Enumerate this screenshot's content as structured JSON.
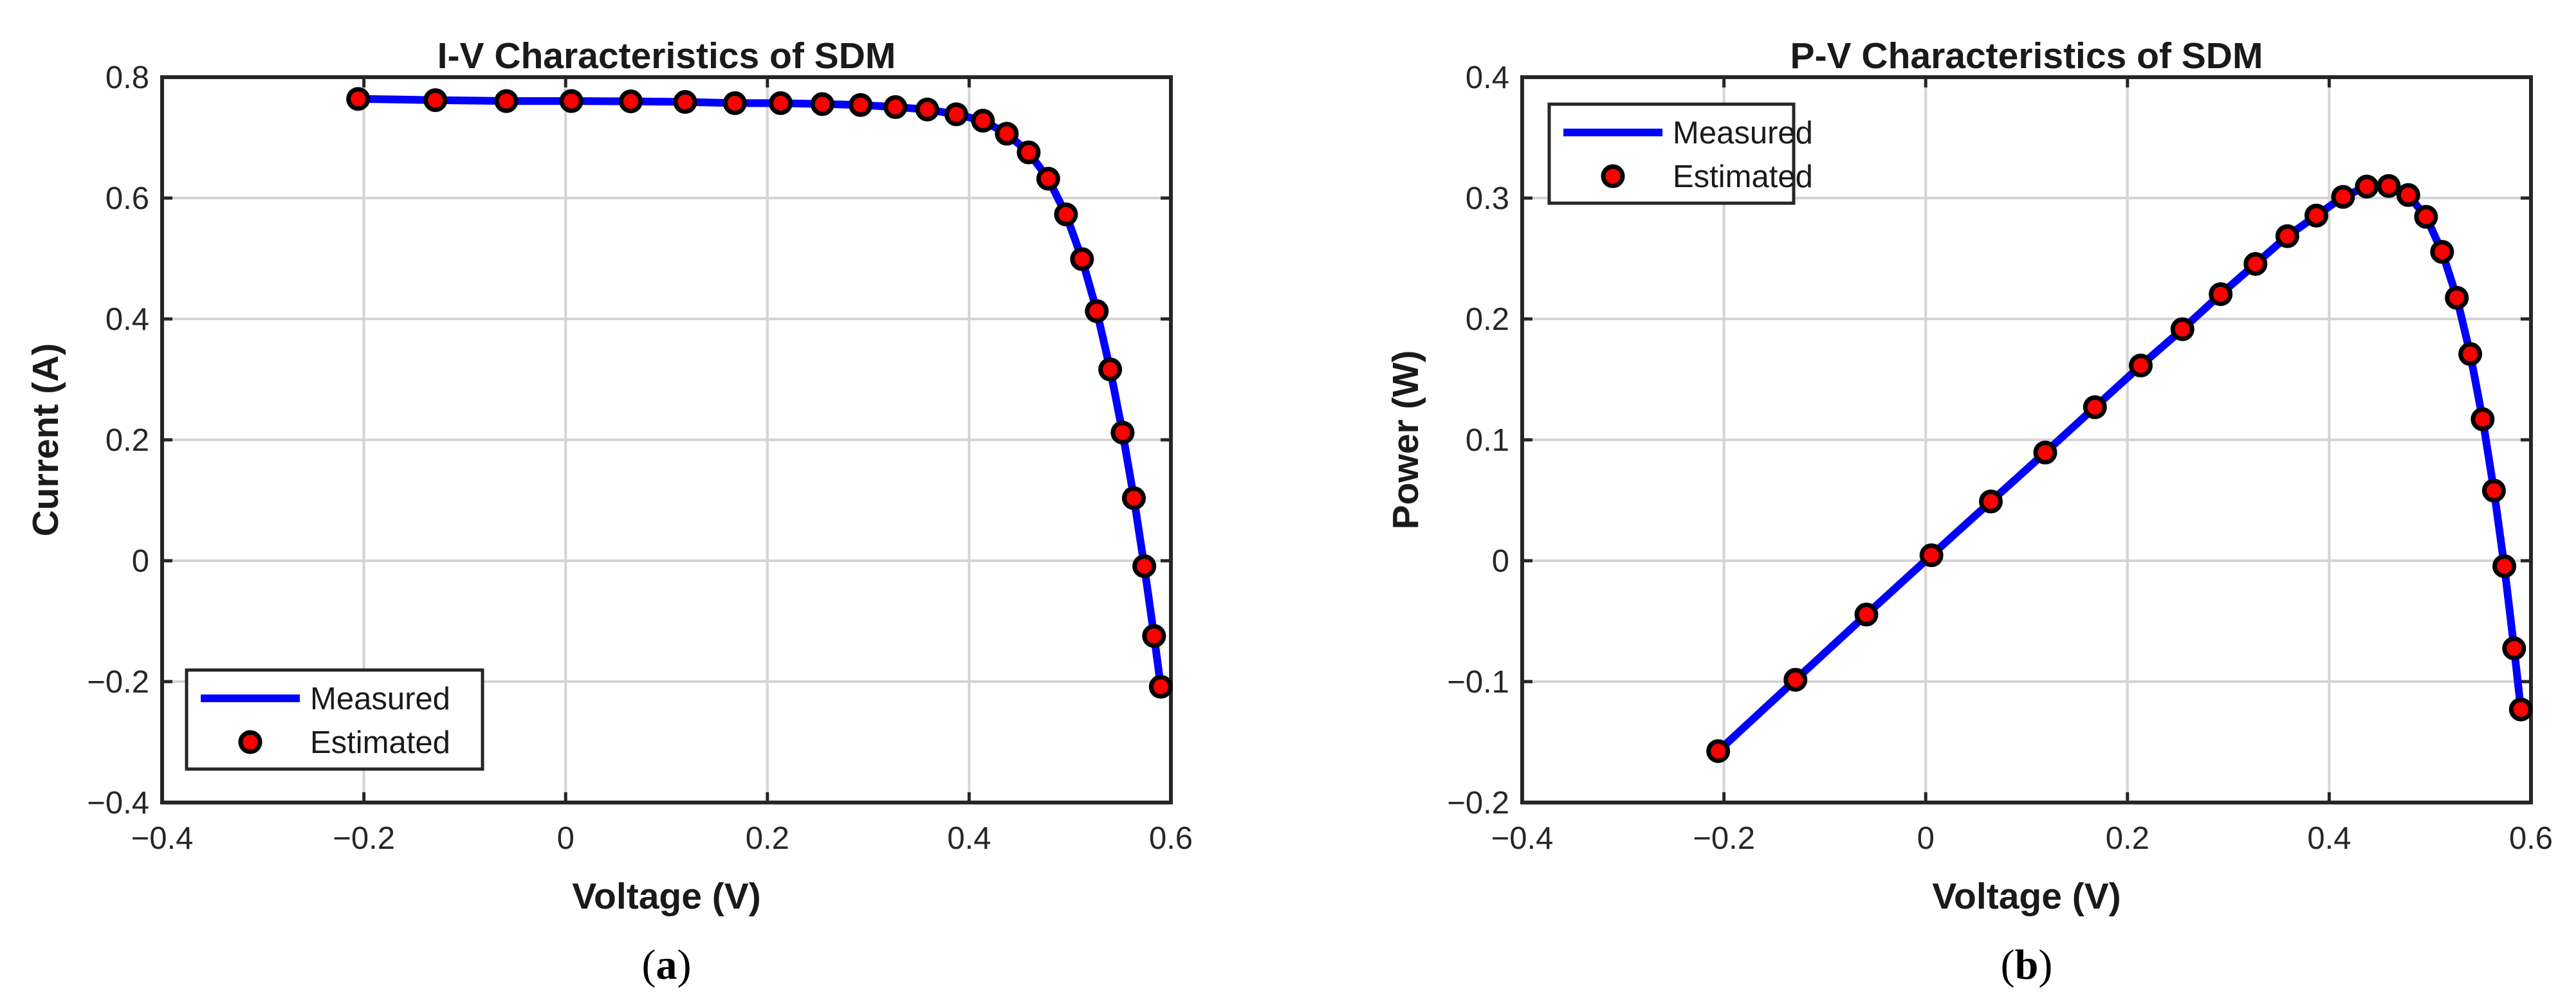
{
  "chart_data": [
    {
      "type": "line",
      "title": "I-V Characteristics of SDM",
      "xlabel": "Voltage (V)",
      "ylabel": "Current (A)",
      "xlim": [
        -0.4,
        0.6
      ],
      "ylim": [
        -0.4,
        0.8
      ],
      "xticks": [
        -0.4,
        -0.2,
        0,
        0.2,
        0.4,
        0.6
      ],
      "yticks": [
        -0.4,
        -0.2,
        0,
        0.2,
        0.4,
        0.6,
        0.8
      ],
      "xtick_labels": [
        "−0.4",
        "−0.2",
        "0",
        "0.2",
        "0.4",
        "0.6"
      ],
      "ytick_labels": [
        "−0.4",
        "−0.2",
        "0",
        "0.2",
        "0.4",
        "0.6",
        "0.8"
      ],
      "grid": true,
      "legend_position": "bottom-left",
      "subplot_label": {
        "open": "(",
        "letter": "a",
        "close": ")"
      },
      "series": [
        {
          "name": "Measured",
          "style": "line",
          "color": "#0000ff",
          "x": [
            -0.2057,
            -0.1291,
            -0.0588,
            0.0057,
            0.0646,
            0.1185,
            0.1678,
            0.2132,
            0.2545,
            0.2924,
            0.3269,
            0.3585,
            0.3873,
            0.4137,
            0.4373,
            0.459,
            0.4784,
            0.496,
            0.5119,
            0.5265,
            0.5398,
            0.5521,
            0.5633,
            0.5736,
            0.5833,
            0.59
          ],
          "y": [
            0.764,
            0.762,
            0.7605,
            0.7605,
            0.76,
            0.759,
            0.757,
            0.757,
            0.7555,
            0.754,
            0.7505,
            0.7465,
            0.7385,
            0.728,
            0.7065,
            0.6755,
            0.632,
            0.573,
            0.499,
            0.413,
            0.3165,
            0.212,
            0.1035,
            -0.009,
            -0.1245,
            -0.2085
          ]
        },
        {
          "name": "Estimated",
          "style": "marker",
          "color": "#ff0000",
          "edge_color": "#000000",
          "x": [
            -0.2057,
            -0.1291,
            -0.0588,
            0.0057,
            0.0646,
            0.1185,
            0.1678,
            0.2132,
            0.2545,
            0.2924,
            0.3269,
            0.3585,
            0.3873,
            0.4137,
            0.4373,
            0.459,
            0.4784,
            0.496,
            0.5119,
            0.5265,
            0.5398,
            0.5521,
            0.5633,
            0.5736,
            0.5833,
            0.59
          ],
          "y": [
            0.764,
            0.762,
            0.7605,
            0.7605,
            0.76,
            0.759,
            0.757,
            0.757,
            0.7555,
            0.754,
            0.7505,
            0.7465,
            0.7385,
            0.728,
            0.7065,
            0.6755,
            0.632,
            0.573,
            0.499,
            0.413,
            0.3165,
            0.212,
            0.1035,
            -0.009,
            -0.1245,
            -0.2085
          ]
        }
      ]
    },
    {
      "type": "line",
      "title": "P-V Characteristics of SDM",
      "xlabel": "Voltage (V)",
      "ylabel": "Power (W)",
      "xlim": [
        -0.4,
        0.6
      ],
      "ylim": [
        -0.2,
        0.4
      ],
      "xticks": [
        -0.4,
        -0.2,
        0,
        0.2,
        0.4,
        0.6
      ],
      "yticks": [
        -0.2,
        -0.1,
        0,
        0.1,
        0.2,
        0.3,
        0.4
      ],
      "xtick_labels": [
        "−0.4",
        "−0.2",
        "0",
        "0.2",
        "0.4",
        "0.6"
      ],
      "ytick_labels": [
        "−0.2",
        "−0.1",
        "0",
        "0.1",
        "0.2",
        "0.3",
        "0.4"
      ],
      "grid": true,
      "legend_position": "top-left",
      "subplot_label": {
        "open": "(",
        "letter": "b",
        "close": ")"
      },
      "series": [
        {
          "name": "Measured",
          "style": "line",
          "color": "#0000ff",
          "x": [
            -0.2057,
            -0.1291,
            -0.0588,
            0.0057,
            0.0646,
            0.1185,
            0.1678,
            0.2132,
            0.2545,
            0.2924,
            0.3269,
            0.3585,
            0.3873,
            0.4137,
            0.4373,
            0.459,
            0.4784,
            0.496,
            0.5119,
            0.5265,
            0.5398,
            0.5521,
            0.5633,
            0.5736,
            0.5833,
            0.59
          ],
          "y": [
            -0.1575,
            -0.0985,
            -0.0445,
            0.0045,
            0.049,
            0.0895,
            0.127,
            0.1615,
            0.1915,
            0.2205,
            0.2455,
            0.2685,
            0.2855,
            0.301,
            0.3095,
            0.31,
            0.3025,
            0.2845,
            0.2555,
            0.2175,
            0.171,
            0.117,
            0.058,
            -0.0045,
            -0.0725,
            -0.123
          ]
        },
        {
          "name": "Estimated",
          "style": "marker",
          "color": "#ff0000",
          "edge_color": "#000000",
          "x": [
            -0.2057,
            -0.1291,
            -0.0588,
            0.0057,
            0.0646,
            0.1185,
            0.1678,
            0.2132,
            0.2545,
            0.2924,
            0.3269,
            0.3585,
            0.3873,
            0.4137,
            0.4373,
            0.459,
            0.4784,
            0.496,
            0.5119,
            0.5265,
            0.5398,
            0.5521,
            0.5633,
            0.5736,
            0.5833,
            0.59
          ],
          "y": [
            -0.1575,
            -0.0985,
            -0.0445,
            0.0045,
            0.049,
            0.0895,
            0.127,
            0.1615,
            0.1915,
            0.2205,
            0.2455,
            0.2685,
            0.2855,
            0.301,
            0.3095,
            0.31,
            0.3025,
            0.2845,
            0.2555,
            0.2175,
            0.171,
            0.117,
            0.058,
            -0.0045,
            -0.0725,
            -0.123
          ]
        }
      ]
    }
  ]
}
